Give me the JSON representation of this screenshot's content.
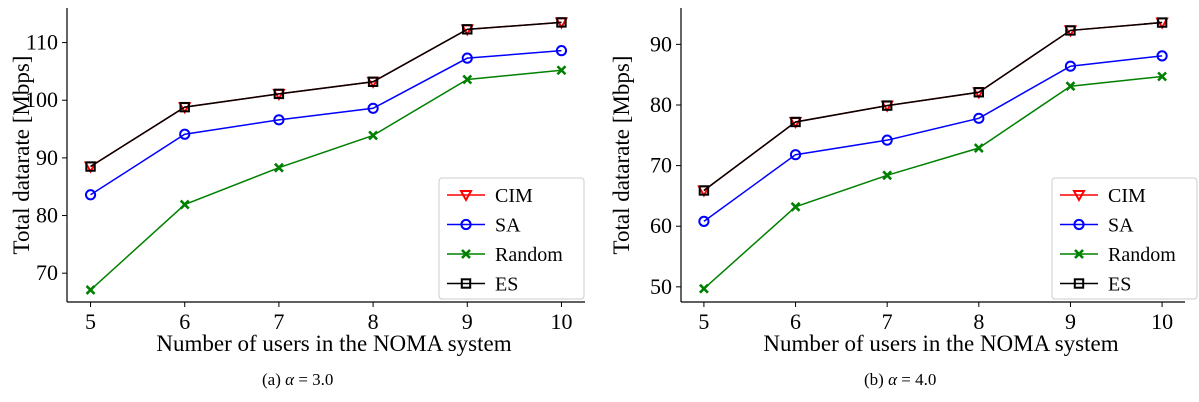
{
  "legend_labels": [
    "CIM",
    "SA",
    "Random",
    "ES"
  ],
  "colors": {
    "CIM": "#ff0000",
    "SA": "#0000ff",
    "Random": "#008000",
    "ES": "#000000"
  },
  "chart_data": [
    {
      "type": "line",
      "caption_prefix": "(a)",
      "caption_value": "3.0",
      "xlabel": "Number of users in the NOMA system",
      "ylabel": "Total datarate [Mbps]",
      "x": [
        5,
        6,
        7,
        8,
        9,
        10
      ],
      "xlim": [
        4.75,
        10.25
      ],
      "ylim": [
        65,
        116
      ],
      "yticks": [
        70,
        80,
        90,
        100,
        110
      ],
      "legend_position": "lower right",
      "series": [
        {
          "name": "CIM",
          "marker": "triangle-down",
          "values": [
            88.5,
            98.8,
            101.1,
            103.2,
            112.3,
            113.5
          ]
        },
        {
          "name": "SA",
          "marker": "circle",
          "values": [
            83.6,
            94.1,
            96.6,
            98.6,
            107.3,
            108.6
          ]
        },
        {
          "name": "Random",
          "marker": "x",
          "values": [
            67.1,
            81.9,
            88.3,
            93.9,
            103.6,
            105.2
          ]
        },
        {
          "name": "ES",
          "marker": "square",
          "values": [
            88.5,
            98.8,
            101.1,
            103.2,
            112.3,
            113.5
          ]
        }
      ]
    },
    {
      "type": "line",
      "caption_prefix": "(b)",
      "caption_value": "4.0",
      "xlabel": "Number of users in the NOMA system",
      "ylabel": "Total datarate [Mbps]",
      "x": [
        5,
        6,
        7,
        8,
        9,
        10
      ],
      "xlim": [
        4.75,
        10.25
      ],
      "ylim": [
        47.5,
        96
      ],
      "yticks": [
        50,
        60,
        70,
        80,
        90
      ],
      "legend_position": "lower right",
      "series": [
        {
          "name": "CIM",
          "marker": "triangle-down",
          "values": [
            65.9,
            77.2,
            79.9,
            82.1,
            92.3,
            93.6
          ]
        },
        {
          "name": "SA",
          "marker": "circle",
          "values": [
            60.8,
            71.8,
            74.2,
            77.8,
            86.4,
            88.1
          ]
        },
        {
          "name": "Random",
          "marker": "x",
          "values": [
            49.7,
            63.2,
            68.4,
            72.9,
            83.1,
            84.7
          ]
        },
        {
          "name": "ES",
          "marker": "square",
          "values": [
            65.9,
            77.2,
            79.9,
            82.1,
            92.3,
            93.6
          ]
        }
      ]
    }
  ]
}
